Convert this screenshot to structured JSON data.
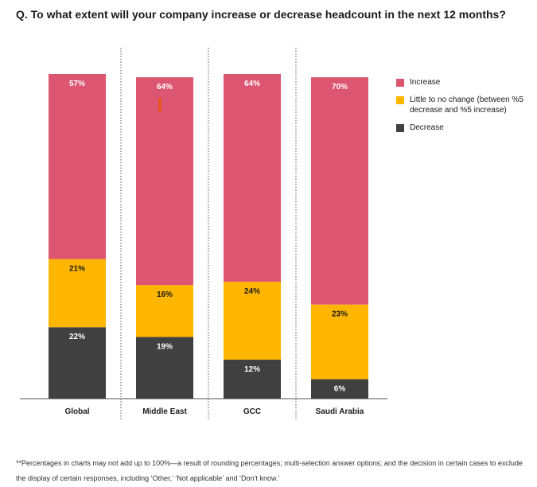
{
  "title": "Q. To what extent will your company increase or decrease headcount in the next 12 months?",
  "chart_data": {
    "type": "bar",
    "stacked": true,
    "categories": [
      "Global",
      "Middle East",
      "GCC",
      "Saudi Arabia"
    ],
    "series": [
      {
        "name": "Increase",
        "color": "#dc5671",
        "values": [
          57,
          64,
          64,
          70
        ],
        "labels": [
          "57%",
          "64%",
          "64%",
          "70%"
        ]
      },
      {
        "name": "Little to no change (between %5 decrease and %5 increase)",
        "color": "#ffb600",
        "values": [
          21,
          16,
          24,
          23
        ],
        "labels": [
          "21%",
          "16%",
          "24%",
          "23%"
        ]
      },
      {
        "name": "Decrease",
        "color": "#404041",
        "values": [
          22,
          19,
          12,
          6
        ],
        "labels": [
          "22%",
          "19%",
          "12%",
          "6%"
        ]
      }
    ],
    "legend_position": "top-right",
    "grid": false,
    "annotation_color": "#e8541e"
  },
  "footnote": "**Percentages in charts may not add up to 100%—a result of rounding percentages; multi-selection answer options; and the decision in certain cases to exclude the display of certain responses, including ‘Other,’ ‘Not applicable’ and ‘Don’t know.’"
}
